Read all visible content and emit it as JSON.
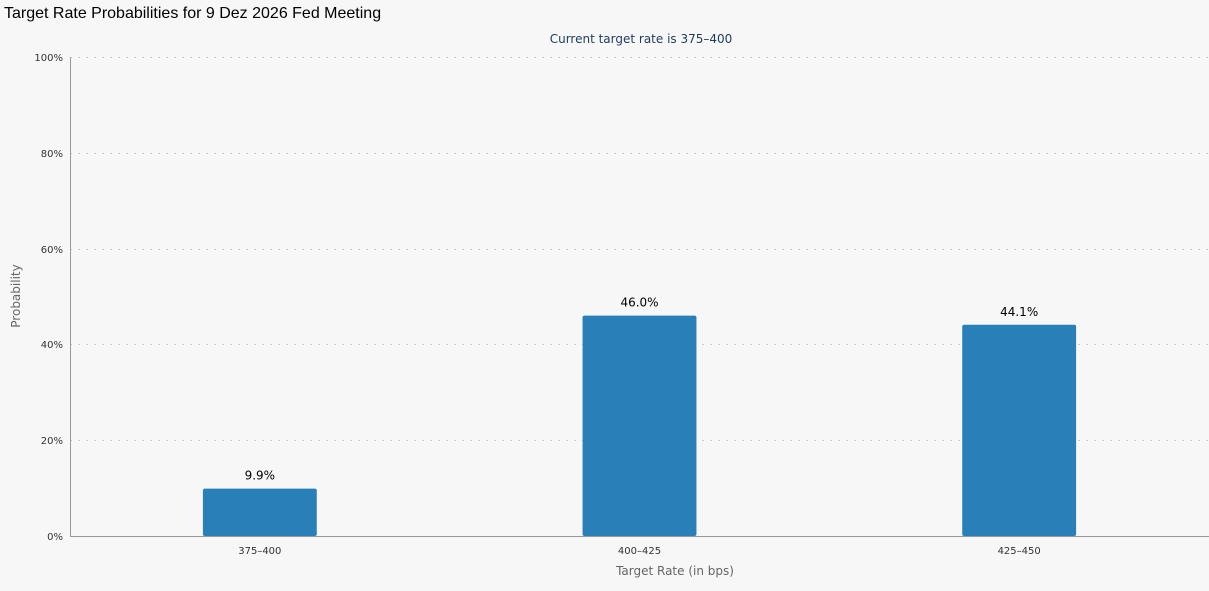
{
  "page": {
    "title": "Target Rate Probabilities for 9 Dez 2026 Fed Meeting"
  },
  "chart_data": {
    "type": "bar",
    "title": "Target Rate Probabilities for 9 Dez 2026 Fed Meeting",
    "subtitle": "Current target rate is 375–400",
    "categories": [
      "375–400",
      "400–425",
      "425–450"
    ],
    "values": [
      9.9,
      46.0,
      44.1
    ],
    "data_labels": [
      "9.9%",
      "46.0%",
      "44.1%"
    ],
    "xlabel": "Target Rate (in bps)",
    "ylabel": "Probability",
    "ylim": [
      0,
      100
    ],
    "yticks": [
      0,
      20,
      40,
      60,
      80,
      100
    ],
    "ytick_labels": [
      "0%",
      "20%",
      "40%",
      "60%",
      "80%",
      "100%"
    ],
    "grid": true,
    "legend": "none",
    "colors": {
      "bar": "#2980b9"
    }
  }
}
